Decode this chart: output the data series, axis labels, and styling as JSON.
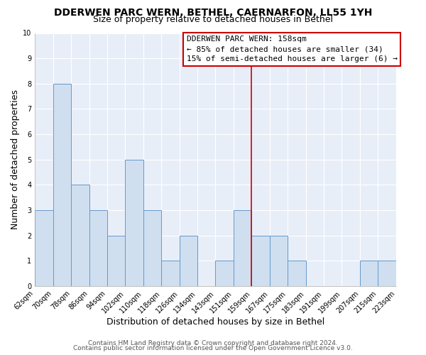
{
  "title": "DDERWEN PARC WERN, BETHEL, CAERNARFON, LL55 1YH",
  "subtitle": "Size of property relative to detached houses in Bethel",
  "xlabel": "Distribution of detached houses by size in Bethel",
  "ylabel": "Number of detached properties",
  "bar_labels": [
    "62sqm",
    "70sqm",
    "78sqm",
    "86sqm",
    "94sqm",
    "102sqm",
    "110sqm",
    "118sqm",
    "126sqm",
    "134sqm",
    "143sqm",
    "151sqm",
    "159sqm",
    "167sqm",
    "175sqm",
    "183sqm",
    "191sqm",
    "199sqm",
    "207sqm",
    "215sqm",
    "223sqm"
  ],
  "bar_values": [
    3,
    8,
    4,
    3,
    2,
    5,
    3,
    1,
    2,
    0,
    1,
    3,
    2,
    2,
    1,
    0,
    0,
    0,
    1,
    1
  ],
  "bar_color": "#cfdff0",
  "bar_edge_color": "#6699cc",
  "vline_color": "#cc0000",
  "annotation_title": "DDERWEN PARC WERN: 158sqm",
  "annotation_line1": "← 85% of detached houses are smaller (34)",
  "annotation_line2": "15% of semi-detached houses are larger (6) →",
  "ylim": [
    0,
    10
  ],
  "yticks": [
    0,
    1,
    2,
    3,
    4,
    5,
    6,
    7,
    8,
    9,
    10
  ],
  "footer1": "Contains HM Land Registry data © Crown copyright and database right 2024.",
  "footer2": "Contains public sector information licensed under the Open Government Licence v3.0.",
  "bg_color": "#ffffff",
  "plot_bg_color": "#e8eef8",
  "grid_color": "#ffffff",
  "title_fontsize": 10,
  "subtitle_fontsize": 9,
  "axis_label_fontsize": 9,
  "tick_fontsize": 7,
  "footer_fontsize": 6.5,
  "annotation_fontsize": 8
}
